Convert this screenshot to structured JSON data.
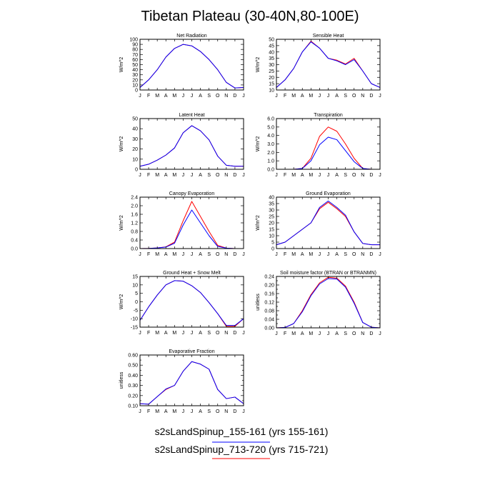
{
  "figure": {
    "title": "Tibetan Plateau (30-40N,80-100E)",
    "legend": [
      {
        "label": "s2sLandSpinup_155-161 (yrs 155-161)",
        "color": "#0000ff"
      },
      {
        "label": "s2sLandSpinup_713-720 (yrs 715-721)",
        "color": "#ff0000"
      }
    ]
  },
  "chart_data": [
    {
      "type": "line",
      "title": "Net Radiation",
      "ylabel": "W/m^2",
      "categories": [
        "J",
        "F",
        "M",
        "A",
        "M",
        "J",
        "J",
        "A",
        "S",
        "O",
        "N",
        "D",
        "J"
      ],
      "ylim": [
        0,
        100
      ],
      "yticks": [
        0,
        10,
        20,
        30,
        40,
        50,
        60,
        70,
        80,
        90,
        100
      ],
      "yticklabels": [
        "0",
        "10",
        "20",
        "30",
        "40",
        "50",
        "60",
        "70",
        "80",
        "90",
        "100"
      ],
      "series": [
        {
          "color": "#ff0000",
          "values": [
            5,
            20,
            40,
            65,
            82,
            90,
            87,
            76,
            60,
            40,
            15,
            4,
            5
          ]
        },
        {
          "color": "#0000ff",
          "values": [
            5,
            20,
            40,
            65,
            82,
            90,
            87,
            76,
            60,
            40,
            15,
            4,
            5
          ]
        }
      ]
    },
    {
      "type": "line",
      "title": "Sensible Heat",
      "ylabel": "W/m^2",
      "categories": [
        "J",
        "F",
        "M",
        "A",
        "M",
        "J",
        "J",
        "A",
        "S",
        "O",
        "N",
        "D",
        "J"
      ],
      "ylim": [
        10,
        50
      ],
      "yticks": [
        10,
        15,
        20,
        25,
        30,
        35,
        40,
        45,
        50
      ],
      "yticklabels": [
        "10",
        "15",
        "20",
        "25",
        "30",
        "35",
        "40",
        "45",
        "50"
      ],
      "series": [
        {
          "color": "#ff0000",
          "values": [
            12,
            18,
            27,
            40,
            48.5,
            43,
            35,
            33.5,
            30.5,
            35,
            25,
            15,
            12
          ]
        },
        {
          "color": "#0000ff",
          "values": [
            12,
            18,
            27,
            40,
            48,
            43,
            35,
            33,
            30,
            34,
            25,
            15,
            12
          ]
        }
      ]
    },
    {
      "type": "line",
      "title": "Latent Heat",
      "ylabel": "W/m^2",
      "categories": [
        "J",
        "F",
        "M",
        "A",
        "M",
        "J",
        "J",
        "A",
        "S",
        "O",
        "N",
        "D",
        "J"
      ],
      "ylim": [
        0,
        50
      ],
      "yticks": [
        0,
        10,
        20,
        30,
        40,
        50
      ],
      "yticklabels": [
        "0",
        "10",
        "20",
        "30",
        "40",
        "50"
      ],
      "series": [
        {
          "color": "#ff0000",
          "values": [
            3,
            5,
            9,
            14,
            21,
            36,
            43,
            38,
            29,
            13,
            4,
            3,
            3
          ]
        },
        {
          "color": "#0000ff",
          "values": [
            3,
            5,
            9,
            14,
            21,
            36,
            43,
            38,
            29,
            13,
            4,
            3,
            3
          ]
        }
      ]
    },
    {
      "type": "line",
      "title": "Transpiration",
      "ylabel": "W/m^2",
      "categories": [
        "J",
        "F",
        "M",
        "A",
        "M",
        "J",
        "J",
        "A",
        "S",
        "O",
        "N",
        "D",
        "J"
      ],
      "ylim": [
        0,
        6
      ],
      "yticks": [
        0,
        1,
        2,
        3,
        4,
        5,
        6
      ],
      "yticklabels": [
        "0.0",
        "1.0",
        "2.0",
        "3.0",
        "4.0",
        "5.0",
        "6.0"
      ],
      "series": [
        {
          "color": "#ff0000",
          "values": [
            0,
            0,
            0,
            0.1,
            1.3,
            3.9,
            5.0,
            4.5,
            3.0,
            1.3,
            0.1,
            0,
            0
          ]
        },
        {
          "color": "#0000ff",
          "values": [
            0,
            0,
            0,
            0.1,
            1.0,
            2.9,
            3.8,
            3.5,
            2.2,
            0.9,
            0.1,
            0,
            0
          ]
        }
      ]
    },
    {
      "type": "line",
      "title": "Canopy Evaporation",
      "ylabel": "W/m^2",
      "categories": [
        "J",
        "F",
        "M",
        "A",
        "M",
        "J",
        "J",
        "A",
        "S",
        "O",
        "N",
        "D",
        "J"
      ],
      "ylim": [
        0,
        2.4
      ],
      "yticks": [
        0,
        0.4,
        0.8,
        1.2,
        1.6,
        2.0,
        2.4
      ],
      "yticklabels": [
        "0.0",
        "0.4",
        "0.8",
        "1.2",
        "1.6",
        "2.0",
        "2.4"
      ],
      "series": [
        {
          "color": "#ff0000",
          "values": [
            0,
            0.01,
            0.03,
            0.08,
            0.3,
            1.3,
            2.2,
            1.5,
            0.8,
            0.15,
            0.02,
            0,
            0
          ]
        },
        {
          "color": "#0000ff",
          "values": [
            0,
            0.01,
            0.03,
            0.07,
            0.25,
            1.1,
            1.8,
            1.2,
            0.6,
            0.1,
            0.02,
            0,
            0
          ]
        }
      ]
    },
    {
      "type": "line",
      "title": "Ground Evaporation",
      "ylabel": "W/m^2",
      "categories": [
        "J",
        "F",
        "M",
        "A",
        "M",
        "J",
        "J",
        "A",
        "S",
        "O",
        "N",
        "D",
        "J"
      ],
      "ylim": [
        0,
        40
      ],
      "yticks": [
        0,
        5,
        10,
        15,
        20,
        25,
        30,
        35,
        40
      ],
      "yticklabels": [
        "0",
        "5",
        "10",
        "15",
        "20",
        "25",
        "30",
        "35",
        "40"
      ],
      "series": [
        {
          "color": "#ff0000",
          "values": [
            3,
            5,
            10,
            15,
            20,
            31,
            36,
            31,
            25,
            13,
            4,
            3,
            3
          ]
        },
        {
          "color": "#0000ff",
          "values": [
            3,
            5,
            10,
            15,
            20,
            32,
            37,
            32,
            26,
            13,
            4,
            3,
            3
          ]
        }
      ]
    },
    {
      "type": "line",
      "title": "Ground Heat + Snow Melt",
      "ylabel": "W/m^2",
      "categories": [
        "J",
        "F",
        "M",
        "A",
        "M",
        "J",
        "J",
        "A",
        "S",
        "O",
        "N",
        "D",
        "J"
      ],
      "ylim": [
        -15,
        15
      ],
      "yticks": [
        -15,
        -10,
        -5,
        0,
        5,
        10,
        15
      ],
      "yticklabels": [
        "-15",
        "-10",
        "-5",
        "0",
        "5",
        "10",
        "15"
      ],
      "series": [
        {
          "color": "#ff0000",
          "values": [
            -11,
            -3,
            4,
            10,
            12.5,
            12.2,
            9.5,
            5.5,
            -0.5,
            -7,
            -14.5,
            -14.5,
            -10
          ]
        },
        {
          "color": "#0000ff",
          "values": [
            -11,
            -3,
            4,
            10,
            12.5,
            12.2,
            9.5,
            5.5,
            -0.5,
            -7,
            -14,
            -14,
            -10
          ]
        }
      ]
    },
    {
      "type": "line",
      "title": "Soil moisture factor (BTRAN or BTRANMN)",
      "ylabel": "unitless",
      "categories": [
        "J",
        "F",
        "M",
        "A",
        "M",
        "J",
        "J",
        "A",
        "S",
        "O",
        "N",
        "D",
        "J"
      ],
      "ylim": [
        0,
        0.24
      ],
      "yticks": [
        0,
        0.02,
        0.04,
        0.06,
        0.08,
        0.1,
        0.12,
        0.14,
        0.16,
        0.18,
        0.2,
        0.22,
        0.24
      ],
      "yticklabels": [
        "0.00",
        "",
        "0.04",
        "",
        "0.08",
        "",
        "0.12",
        "",
        "0.16",
        "",
        "0.20",
        "",
        "0.24"
      ],
      "series": [
        {
          "color": "#ff0000",
          "values": [
            0,
            0.002,
            0.02,
            0.08,
            0.155,
            0.21,
            0.236,
            0.232,
            0.195,
            0.12,
            0.025,
            0.003,
            0
          ]
        },
        {
          "color": "#0000ff",
          "values": [
            0,
            0.002,
            0.02,
            0.075,
            0.15,
            0.205,
            0.23,
            0.228,
            0.19,
            0.115,
            0.025,
            0.003,
            0
          ]
        }
      ]
    },
    {
      "type": "line",
      "title": "Evaporative Fraction",
      "ylabel": "unitless",
      "categories": [
        "J",
        "F",
        "M",
        "A",
        "M",
        "J",
        "J",
        "A",
        "S",
        "O",
        "N",
        "D",
        "J"
      ],
      "ylim": [
        0.1,
        0.6
      ],
      "yticks": [
        0.1,
        0.2,
        0.3,
        0.4,
        0.5,
        0.6
      ],
      "yticklabels": [
        "0.10",
        "0.20",
        "0.30",
        "0.40",
        "0.50",
        "0.60"
      ],
      "minor_yticks": [
        0.15,
        0.25,
        0.35,
        0.45,
        0.55
      ],
      "series": [
        {
          "color": "#ff0000",
          "values": [
            0.12,
            0.115,
            0.19,
            0.26,
            0.3,
            0.44,
            0.535,
            0.51,
            0.46,
            0.26,
            0.17,
            0.185,
            0.12
          ]
        },
        {
          "color": "#0000ff",
          "values": [
            0.12,
            0.115,
            0.19,
            0.265,
            0.3,
            0.44,
            0.535,
            0.51,
            0.46,
            0.26,
            0.17,
            0.185,
            0.12
          ]
        }
      ]
    }
  ]
}
